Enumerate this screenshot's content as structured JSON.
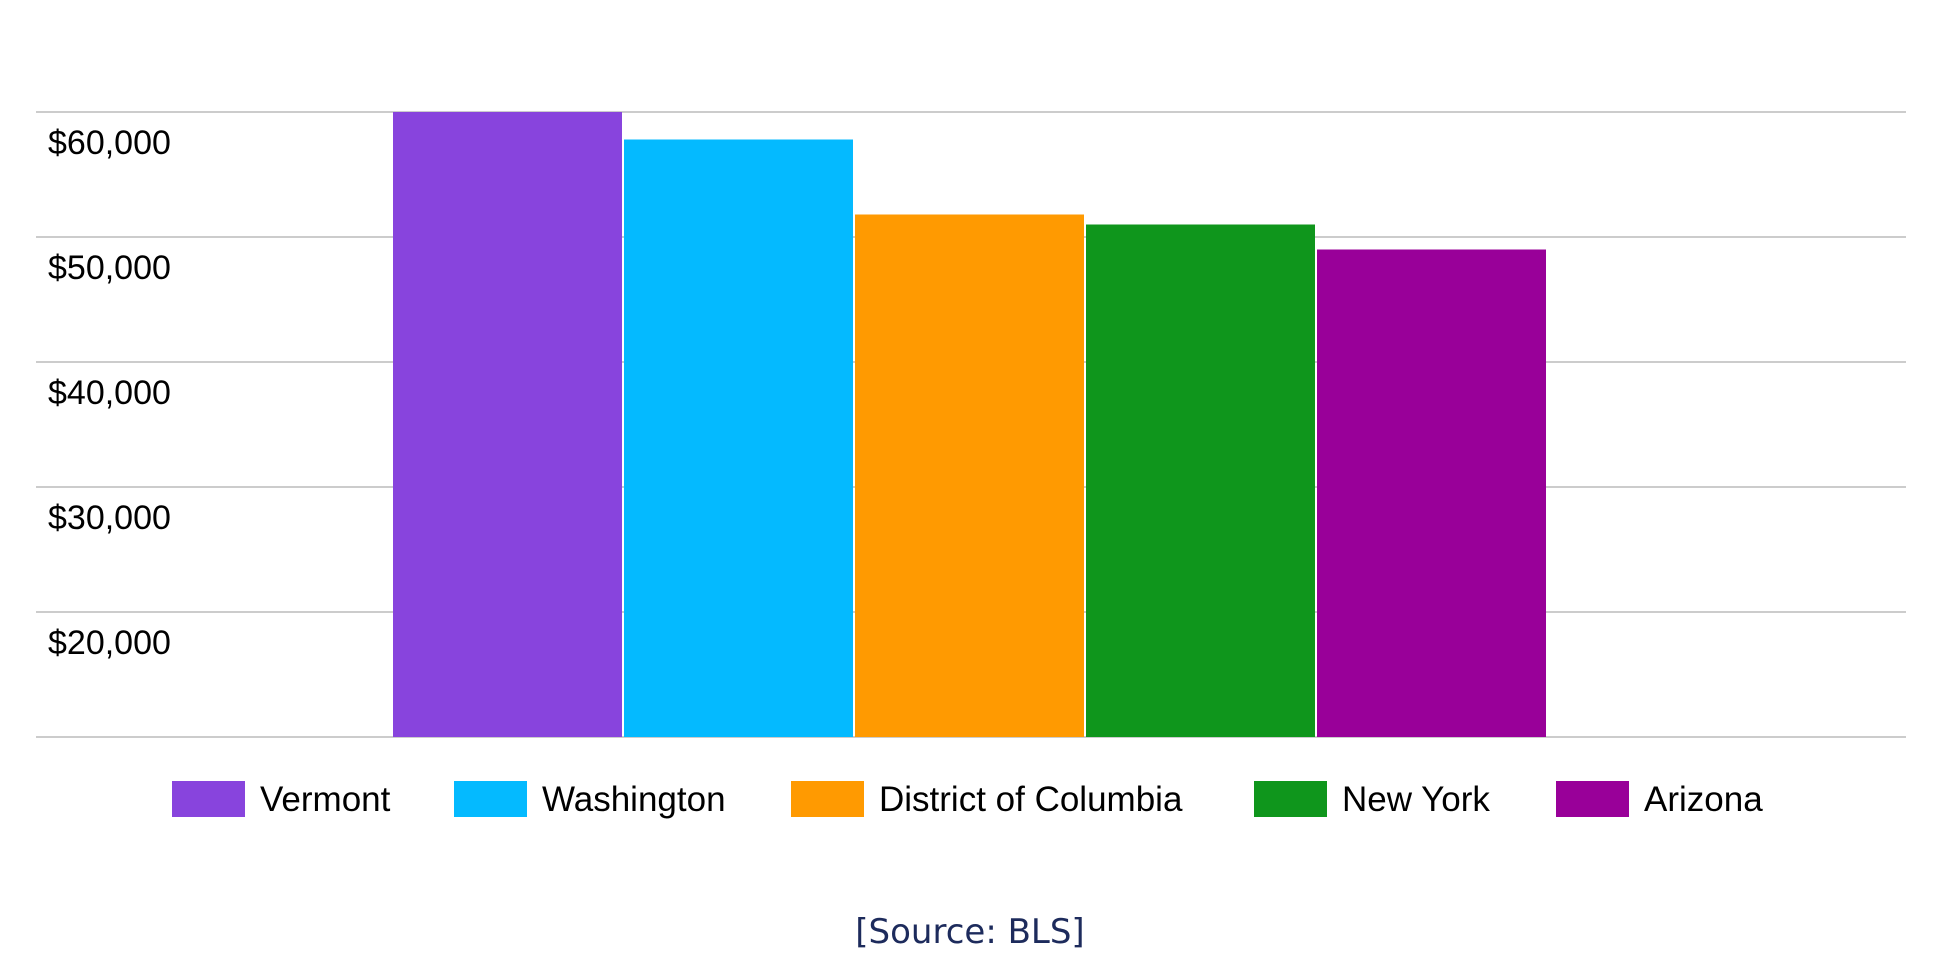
{
  "chart_data": {
    "type": "bar",
    "categories": [
      "Vermont",
      "Washington",
      "District of Columbia",
      "New York",
      "Arizona"
    ],
    "values": [
      60000,
      57800,
      51800,
      51000,
      49000
    ],
    "colors": [
      "#8844dd",
      "#04baff",
      "#ff9a01",
      "#0f961c",
      "#990099"
    ],
    "ylim": [
      10000,
      60000
    ],
    "yticks": [
      20000,
      30000,
      40000,
      50000,
      60000
    ],
    "ytick_labels": [
      "$20,000",
      "$30,000",
      "$40,000",
      "$50,000",
      "$60,000"
    ],
    "grid": true,
    "legend": "bottom",
    "title": "",
    "xlabel": "",
    "ylabel": ""
  },
  "source_text": "[Source: BLS]"
}
